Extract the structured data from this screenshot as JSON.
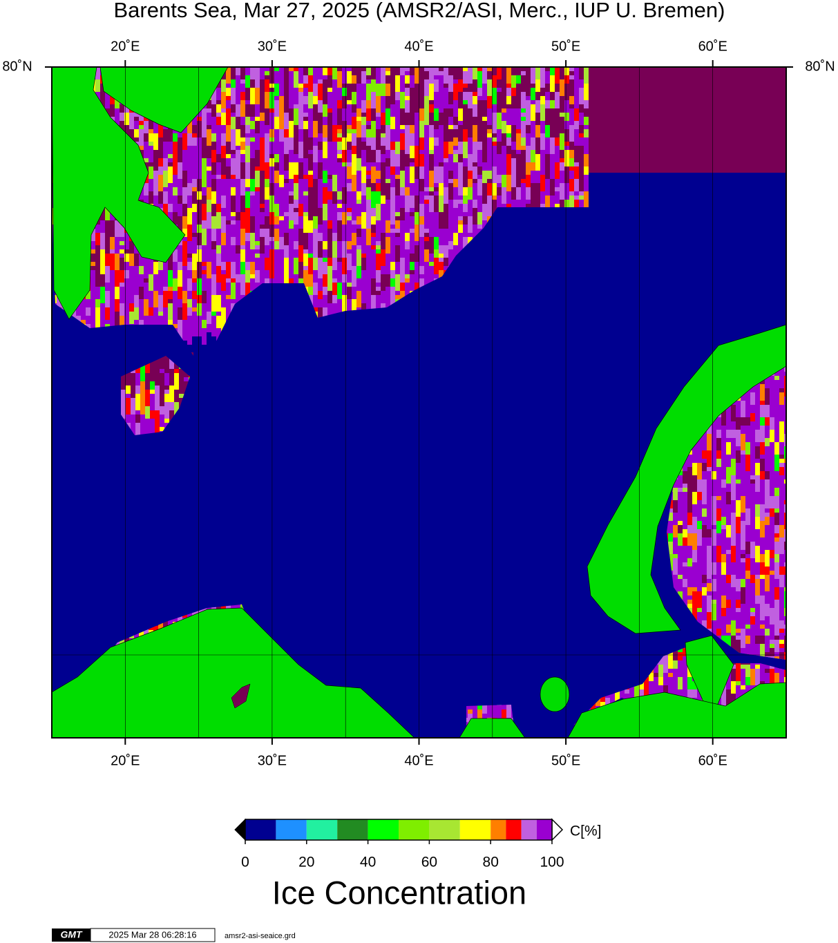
{
  "title": "Barents Sea, Mar 27, 2025 (AMSR2/ASI, Merc., IUP U. Bremen)",
  "map": {
    "xlim": [
      15,
      65
    ],
    "xticks": [
      {
        "value": 20,
        "label": "20˚E"
      },
      {
        "value": 30,
        "label": "30˚E"
      },
      {
        "value": 40,
        "label": "40˚E"
      },
      {
        "value": 50,
        "label": "50˚E"
      },
      {
        "value": 60,
        "label": "60˚E"
      }
    ],
    "lat_label": "80˚N"
  },
  "colorbar": {
    "bounds": [
      0,
      10,
      20,
      30,
      40,
      50,
      60,
      70,
      80,
      85,
      90,
      95,
      100
    ],
    "colors": [
      "#000090",
      "#1e90ff",
      "#22f0a0",
      "#228b22",
      "#00ff00",
      "#7fee00",
      "#a8e632",
      "#ffff00",
      "#ff7f00",
      "#ff0000",
      "#c060e0",
      "#9a00d0"
    ],
    "ticks": [
      0,
      20,
      40,
      60,
      80,
      100
    ],
    "unit": "C[%]",
    "label": "Ice Concentration"
  },
  "footer": {
    "logo": "GMT",
    "timestamp": "2025 Mar 28 06:28:16",
    "file": "amsr2-asi-seaice.grd"
  }
}
